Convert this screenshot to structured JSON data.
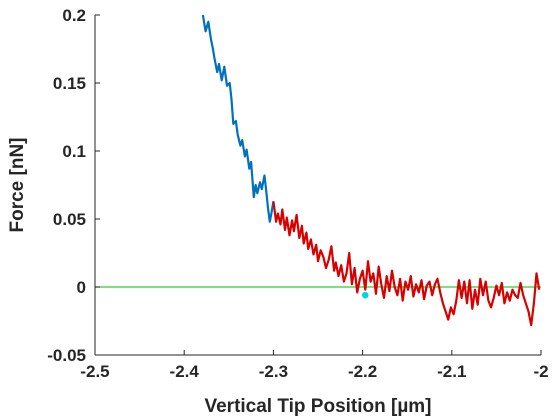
{
  "chart_data": {
    "type": "line",
    "xlabel": "Vertical Tip Position [µm]",
    "ylabel": "Force [nN]",
    "xlim": [
      -2.5,
      -2.0
    ],
    "ylim": [
      -0.05,
      0.2
    ],
    "x_ticks": [
      -2.5,
      -2.4,
      -2.3,
      -2.2,
      -2.1,
      -2.0
    ],
    "x_tick_labels": [
      "-2.5",
      "-2.4",
      "-2.3",
      "-2.2",
      "-2.1",
      "-2"
    ],
    "y_ticks": [
      -0.05,
      0,
      0.05,
      0.1,
      0.15,
      0.2
    ],
    "y_tick_labels": [
      "-0.05",
      "0",
      "0.05",
      "0.1",
      "0.15",
      "0.2"
    ],
    "grid": false,
    "legend": "none",
    "series": [
      {
        "color": "#0072BD",
        "x": [
          -2.379,
          -2.376,
          -2.373,
          -2.37,
          -2.368,
          -2.366,
          -2.363,
          -2.361,
          -2.358,
          -2.355,
          -2.352,
          -2.349,
          -2.347,
          -2.345,
          -2.342,
          -2.34,
          -2.337,
          -2.335,
          -2.332,
          -2.33,
          -2.327,
          -2.325,
          -2.322,
          -2.32,
          -2.318,
          -2.315,
          -2.313,
          -2.31,
          -2.308,
          -2.306,
          -2.304,
          -2.302,
          -2.3
        ],
        "y": [
          0.2,
          0.188,
          0.195,
          0.182,
          0.176,
          0.168,
          0.158,
          0.164,
          0.152,
          0.162,
          0.148,
          0.15,
          0.138,
          0.12,
          0.122,
          0.112,
          0.104,
          0.108,
          0.096,
          0.101,
          0.087,
          0.092,
          0.066,
          0.075,
          0.069,
          0.077,
          0.072,
          0.082,
          0.07,
          0.058,
          0.048,
          0.055,
          0.063
        ]
      },
      {
        "color": "#D90000",
        "x": [
          -2.3,
          -2.297,
          -2.295,
          -2.292,
          -2.29,
          -2.287,
          -2.285,
          -2.282,
          -2.279,
          -2.277,
          -2.274,
          -2.271,
          -2.268,
          -2.266,
          -2.263,
          -2.261,
          -2.258,
          -2.255,
          -2.252,
          -2.25,
          -2.247,
          -2.244,
          -2.241,
          -2.238,
          -2.235,
          -2.232,
          -2.23,
          -2.227,
          -2.224,
          -2.221,
          -2.218,
          -2.215,
          -2.212,
          -2.209,
          -2.206,
          -2.203,
          -2.2,
          -2.197,
          -2.194,
          -2.191,
          -2.188,
          -2.185,
          -2.182,
          -2.179,
          -2.176,
          -2.173,
          -2.17,
          -2.167,
          -2.164,
          -2.161,
          -2.158,
          -2.155,
          -2.152,
          -2.149,
          -2.146,
          -2.143,
          -2.14,
          -2.137,
          -2.134,
          -2.131,
          -2.128,
          -2.125,
          -2.122,
          -2.119,
          -2.116,
          -2.113,
          -2.11,
          -2.107,
          -2.104,
          -2.101,
          -2.098,
          -2.095,
          -2.092,
          -2.089,
          -2.086,
          -2.083,
          -2.08,
          -2.077,
          -2.074,
          -2.071,
          -2.068,
          -2.065,
          -2.062,
          -2.059,
          -2.056,
          -2.053,
          -2.05,
          -2.047,
          -2.044,
          -2.041,
          -2.038,
          -2.035,
          -2.032,
          -2.029,
          -2.026,
          -2.023,
          -2.02,
          -2.017,
          -2.014,
          -2.011,
          -2.008,
          -2.005,
          -2.002
        ],
        "y": [
          0.063,
          0.048,
          0.054,
          0.046,
          0.057,
          0.042,
          0.051,
          0.038,
          0.049,
          0.041,
          0.053,
          0.036,
          0.045,
          0.032,
          0.04,
          0.028,
          0.035,
          0.024,
          0.031,
          0.019,
          0.027,
          0.022,
          0.014,
          0.02,
          0.03,
          0.012,
          0.018,
          0.008,
          0.016,
          0.004,
          0.01,
          0.025,
          0.002,
          0.014,
          -0.004,
          0.006,
          0.012,
          -0.002,
          0.019,
          0.004,
          0.01,
          -0.005,
          0.015,
          0.002,
          -0.008,
          0.008,
          -0.003,
          0.012,
          0.0,
          -0.006,
          0.006,
          -0.01,
          0.004,
          -0.002,
          0.008,
          -0.007,
          0.002,
          -0.004,
          0.005,
          -0.009,
          0.001,
          0.004,
          -0.006,
          0.002,
          0.006,
          -0.004,
          -0.012,
          -0.018,
          -0.024,
          -0.015,
          -0.02,
          -0.01,
          0.005,
          -0.008,
          0.004,
          -0.012,
          0.005,
          -0.016,
          -0.002,
          -0.013,
          0.006,
          -0.006,
          0.004,
          -0.01,
          -0.015,
          -0.008,
          0.001,
          -0.006,
          0.003,
          -0.012,
          -0.004,
          -0.01,
          -0.002,
          -0.006,
          -0.008,
          0.003,
          -0.006,
          -0.012,
          -0.018,
          -0.028,
          -0.012,
          0.01,
          -0.002
        ]
      },
      {
        "color": "#33CC33",
        "x": [
          -2.5,
          -2.0
        ],
        "y": [
          0,
          0
        ]
      }
    ],
    "markers": [
      {
        "x": -2.197,
        "y": -0.006,
        "color": "#00D5E5"
      }
    ]
  }
}
